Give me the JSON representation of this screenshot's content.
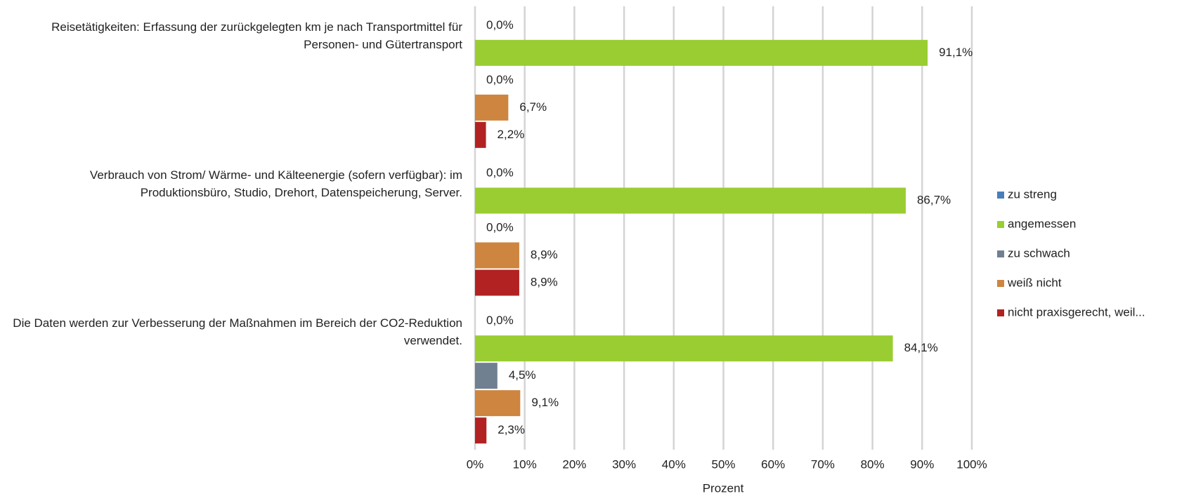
{
  "chart_data": {
    "type": "hbar",
    "categories": [
      "Reisetätigkeiten: Erfassung der zurückgelegten km je nach Transportmittel für Personen- und Gütertransport",
      "Verbrauch von Strom/ Wärme- und Kälteenergie (sofern verfügbar): im Produktionsbüro, Studio, Drehort, Datenspeicherung, Server.",
      "Die Daten werden zur Verbesserung der Maßnahmen im Bereich der CO2-Reduktion verwendet."
    ],
    "series": [
      {
        "name": "zu streng",
        "color": "#4a7ebb",
        "values": [
          0,
          0,
          0
        ],
        "value_labels": [
          "0,0%",
          "0,0%",
          "0,0%"
        ]
      },
      {
        "name": "angemessen",
        "color": "#9acd32",
        "values": [
          91.1,
          86.7,
          84.1
        ],
        "value_labels": [
          "91,1%",
          "86,7%",
          "84,1%"
        ]
      },
      {
        "name": "zu schwach",
        "color": "#708090",
        "values": [
          0,
          0,
          4.5
        ],
        "value_labels": [
          "0,0%",
          "0,0%",
          "4,5%"
        ]
      },
      {
        "name": "weiß nicht",
        "color": "#cd853f",
        "values": [
          6.7,
          8.9,
          9.1
        ],
        "value_labels": [
          "6,7%",
          "8,9%",
          "9,1%"
        ]
      },
      {
        "name": "nicht praxisgerecht, weil...",
        "color": "#b22222",
        "values": [
          2.2,
          8.9,
          2.3
        ],
        "value_labels": [
          "2,2%",
          "8,9%",
          "2,3%"
        ]
      }
    ],
    "xlabel": "Prozent",
    "xlim": [
      0,
      100
    ],
    "xticks": [
      {
        "value": 0,
        "label": "0%"
      },
      {
        "value": 10,
        "label": "10%"
      },
      {
        "value": 20,
        "label": "20%"
      },
      {
        "value": 30,
        "label": "30%"
      },
      {
        "value": 40,
        "label": "40%"
      },
      {
        "value": 50,
        "label": "50%"
      },
      {
        "value": 60,
        "label": "60%"
      },
      {
        "value": 70,
        "label": "70%"
      },
      {
        "value": 80,
        "label": "80%"
      },
      {
        "value": 90,
        "label": "90%"
      },
      {
        "value": 100,
        "label": "100%"
      }
    ],
    "grid": true,
    "legend": "right"
  }
}
